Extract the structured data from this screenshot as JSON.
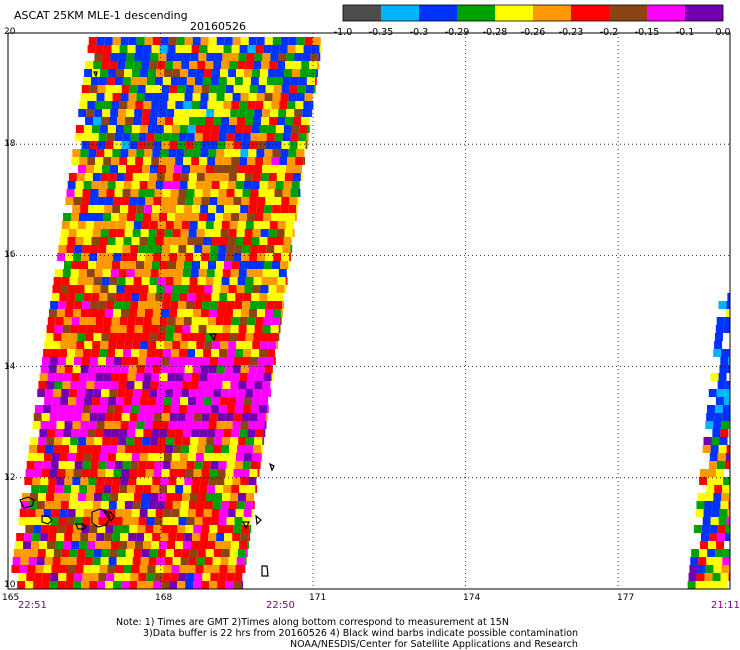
{
  "header": {
    "title": "ASCAT 25KM MLE-1 descending",
    "date": "20160526"
  },
  "colorbar": {
    "colors": [
      "#4d4d4d",
      "#00b4ff",
      "#0032ff",
      "#00a000",
      "#ffff00",
      "#ff9900",
      "#ff0000",
      "#8b4513",
      "#ff00ff",
      "#7000b0"
    ],
    "labels": [
      "-1.0",
      "-0.35",
      "-0.3",
      "-0.29",
      "-0.28",
      "-0.26",
      "-0.23",
      "-0.2",
      "-0.15",
      "-0.1",
      "0.0"
    ]
  },
  "axes": {
    "lat_labels": [
      "20",
      "18",
      "16",
      "14",
      "12",
      "10"
    ],
    "lon_labels": [
      "165",
      "168",
      "171",
      "174",
      "177"
    ],
    "time_labels": [
      "22:51",
      "22:50",
      "21:11"
    ]
  },
  "notes": {
    "line1": "Note: 1) Times are GMT 2)Times along bottom correspond to measurement at 15N",
    "line2": "3)Data buffer is 22 hrs from 20160526 4) Black wind barbs indicate possible contamination",
    "credit": "NOAA/NESDIS/Center for Satellite Applications and Research"
  },
  "map": {
    "lat_range": [
      10,
      20
    ],
    "lon_range": [
      165,
      179.2
    ],
    "grid": true,
    "swaths": [
      {
        "name": "west",
        "lat_min": 10,
        "lat_max": 20,
        "lon_west_at_lat_min": 165,
        "lon_west_at_lat_max": 166.6,
        "width_deg": 4.6
      },
      {
        "name": "east",
        "lat_min": 10,
        "lat_max": 15.4,
        "lon_west_at_lat_min": 178.35,
        "lon_west_at_lat_max": 179.0,
        "width_deg": 1.2
      }
    ]
  }
}
